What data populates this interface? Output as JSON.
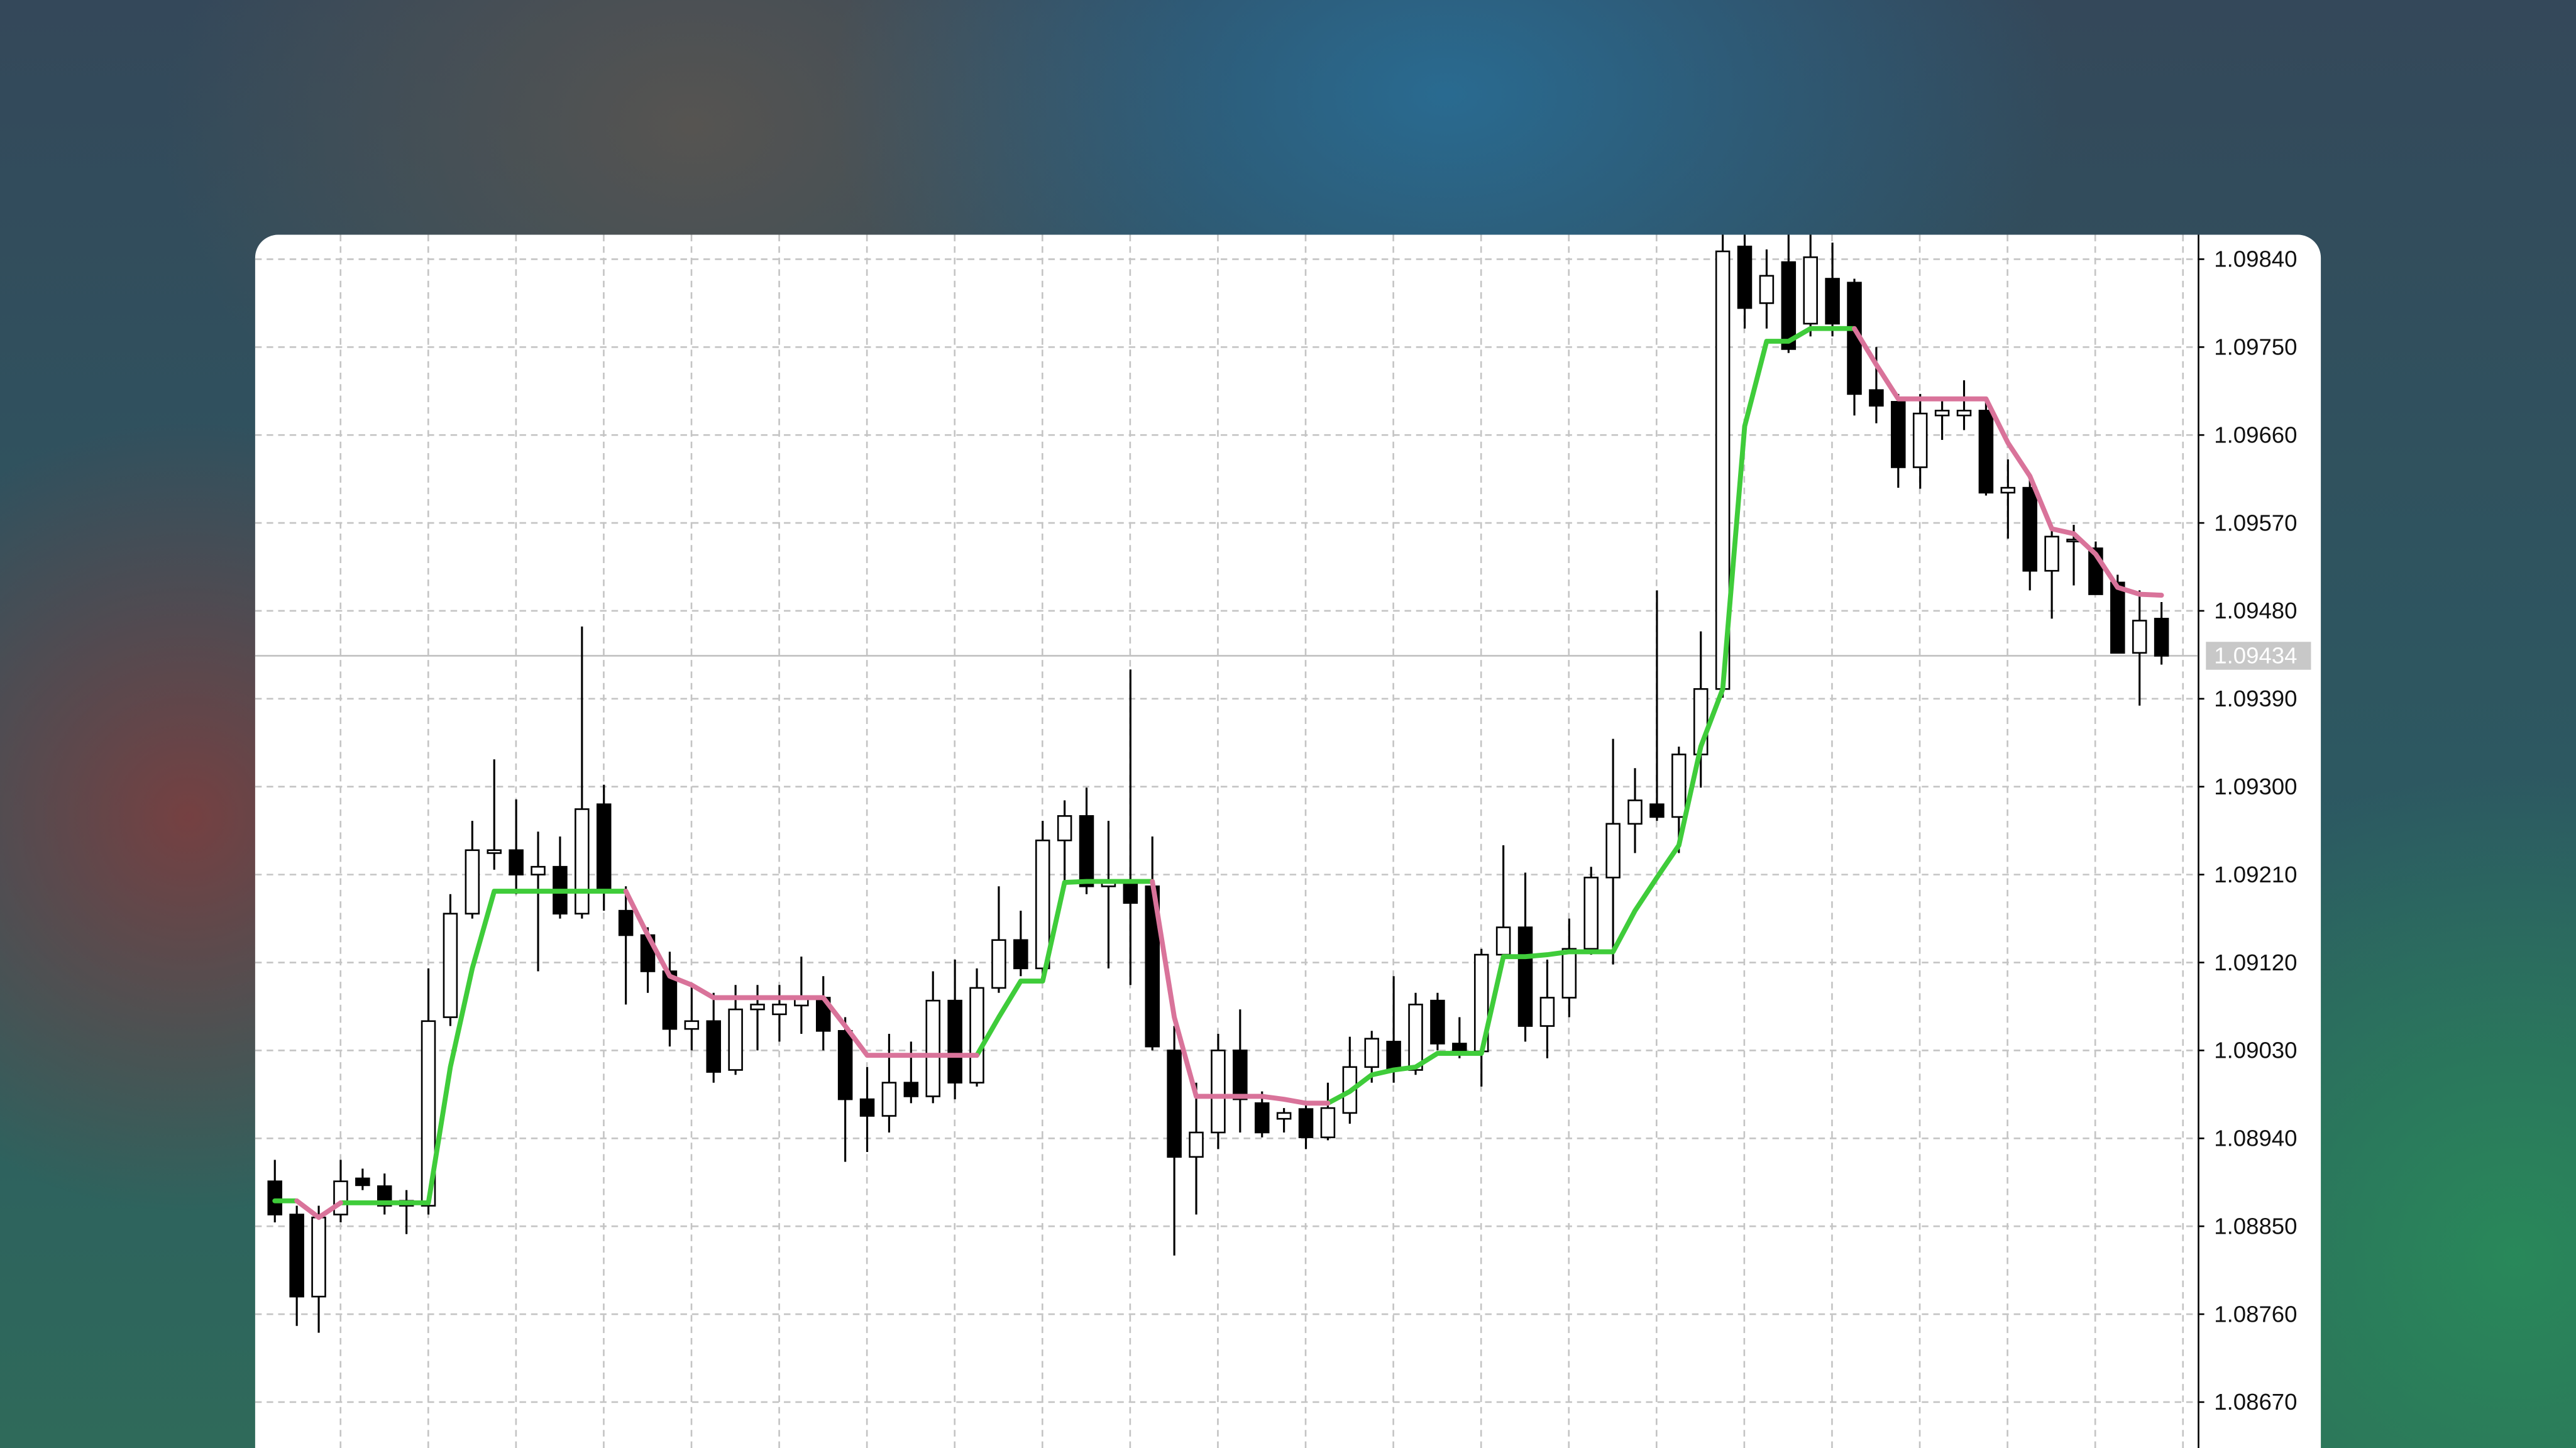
{
  "chart_data": {
    "type": "candlestick",
    "ylim": [
      1.08623,
      1.09865
    ],
    "yticks": [
      {
        "value": 1.0984,
        "label": "1.09840"
      },
      {
        "value": 1.0975,
        "label": "1.09750"
      },
      {
        "value": 1.0966,
        "label": "1.09660"
      },
      {
        "value": 1.0957,
        "label": "1.09570"
      },
      {
        "value": 1.0948,
        "label": "1.09480"
      },
      {
        "value": 1.0939,
        "label": "1.09390"
      },
      {
        "value": 1.093,
        "label": "1.09300"
      },
      {
        "value": 1.0921,
        "label": "1.09210"
      },
      {
        "value": 1.0912,
        "label": "1.09120"
      },
      {
        "value": 1.0903,
        "label": "1.09030"
      },
      {
        "value": 1.0894,
        "label": "1.08940"
      },
      {
        "value": 1.0885,
        "label": "1.08850"
      },
      {
        "value": 1.0876,
        "label": "1.08760"
      },
      {
        "value": 1.0867,
        "label": "1.08670"
      }
    ],
    "grid": true,
    "up_color": "#ffffff",
    "down_color": "#000000",
    "last_price": {
      "value": 1.09434,
      "label": "1.09434"
    },
    "open": [
      1.08896,
      1.08862,
      1.08778,
      1.08862,
      1.08899,
      1.08891,
      1.08871,
      1.08871,
      1.09064,
      1.0917,
      1.09232,
      1.09235,
      1.0921,
      1.09218,
      1.0917,
      1.09282,
      1.09173,
      1.09148,
      1.09111,
      1.09052,
      1.0906,
      1.0901,
      1.09072,
      1.09067,
      1.09076,
      1.09084,
      1.0905,
      1.0898,
      1.08963,
      1.08997,
      1.08983,
      1.09081,
      1.08997,
      1.09094,
      1.09143,
      1.09114,
      1.09245,
      1.0927,
      1.09198,
      1.09203,
      1.09198,
      1.0903,
      1.08921,
      1.08946,
      1.0903,
      1.08976,
      1.0896,
      1.0897,
      1.08941,
      1.08966,
      1.09013,
      1.09039,
      1.0901,
      1.09081,
      1.09037,
      1.09029,
      1.09128,
      1.09156,
      1.09055,
      1.09084,
      1.09134,
      1.09207,
      1.09262,
      1.09282,
      1.09269,
      1.09333,
      1.094,
      1.09853,
      1.09795,
      1.09837,
      1.09774,
      1.0982,
      1.09816,
      1.09706,
      1.09694,
      1.09627,
      1.0968,
      1.0968,
      1.09685,
      1.09601,
      1.09606,
      1.09521,
      1.09551,
      1.09544,
      1.09509,
      1.09437,
      1.09472
    ],
    "high": [
      1.08918,
      1.08871,
      1.08871,
      1.08918,
      1.08909,
      1.08904,
      1.08887,
      1.09114,
      1.0919,
      1.09265,
      1.09328,
      1.09287,
      1.09254,
      1.09249,
      1.09464,
      1.09302,
      1.09198,
      1.09156,
      1.09131,
      1.09097,
      1.09089,
      1.09097,
      1.09097,
      1.09097,
      1.09126,
      1.09106,
      1.09064,
      1.09013,
      1.09047,
      1.09039,
      1.09111,
      1.09123,
      1.09114,
      1.09198,
      1.09173,
      1.09265,
      1.09286,
      1.09299,
      1.09265,
      1.0942,
      1.09249,
      1.09055,
      1.08997,
      1.09047,
      1.09072,
      1.08988,
      1.08971,
      1.08976,
      1.08997,
      1.09044,
      1.0905,
      1.09106,
      1.09089,
      1.09089,
      1.09064,
      1.09134,
      1.0924,
      1.09212,
      1.09123,
      1.09165,
      1.09218,
      1.09349,
      1.09319,
      1.09501,
      1.09341,
      1.09459,
      1.09865,
      1.09865,
      1.0985,
      1.09865,
      1.09865,
      1.09857,
      1.0982,
      1.0975,
      1.09702,
      1.09702,
      1.09696,
      1.09716,
      1.09694,
      1.09635,
      1.09618,
      1.09564,
      1.09568,
      1.09551,
      1.09517,
      1.09501,
      1.09489
    ],
    "low": [
      1.08854,
      1.08748,
      1.08741,
      1.08854,
      1.08887,
      1.08862,
      1.08842,
      1.08862,
      1.09055,
      1.09165,
      1.09215,
      1.0919,
      1.09111,
      1.09165,
      1.09165,
      1.09173,
      1.09077,
      1.09089,
      1.09034,
      1.0903,
      1.08997,
      1.09005,
      1.0903,
      1.09039,
      1.09047,
      1.0903,
      1.08916,
      1.08926,
      1.08946,
      1.08976,
      1.08976,
      1.0898,
      1.08993,
      1.09089,
      1.09106,
      1.09106,
      1.09198,
      1.0919,
      1.09114,
      1.09097,
      1.0903,
      1.0882,
      1.08862,
      1.08929,
      1.08946,
      1.08941,
      1.08946,
      1.08929,
      1.08938,
      1.08955,
      1.08997,
      1.08997,
      1.09005,
      1.0903,
      1.09022,
      1.08993,
      1.09123,
      1.09039,
      1.09022,
      1.09064,
      1.09128,
      1.09118,
      1.09232,
      1.09265,
      1.09232,
      1.09299,
      1.09391,
      1.09769,
      1.09769,
      1.09744,
      1.09761,
      1.09761,
      1.0968,
      1.09672,
      1.09606,
      1.09605,
      1.09655,
      1.09665,
      1.09598,
      1.09554,
      1.09501,
      1.09472,
      1.09506,
      1.09497,
      1.09437,
      1.09383,
      1.09425
    ],
    "close": [
      1.08862,
      1.08778,
      1.08859,
      1.08896,
      1.08892,
      1.08871,
      1.08876,
      1.0906,
      1.0917,
      1.09235,
      1.09235,
      1.0921,
      1.09218,
      1.0917,
      1.09277,
      1.09195,
      1.09148,
      1.09111,
      1.09052,
      1.0906,
      1.09008,
      1.09072,
      1.09077,
      1.09077,
      1.09084,
      1.0905,
      1.0898,
      1.08963,
      1.08997,
      1.08983,
      1.09081,
      1.08997,
      1.09094,
      1.09143,
      1.09114,
      1.09245,
      1.0927,
      1.09198,
      1.09203,
      1.09181,
      1.09034,
      1.08921,
      1.08946,
      1.0903,
      1.0898,
      1.08946,
      1.08966,
      1.08941,
      1.08971,
      1.09013,
      1.09042,
      1.0901,
      1.09077,
      1.09037,
      1.09029,
      1.09128,
      1.09156,
      1.09055,
      1.09084,
      1.09134,
      1.09207,
      1.09262,
      1.09286,
      1.09269,
      1.09333,
      1.094,
      1.09848,
      1.0979,
      1.09823,
      1.09748,
      1.09842,
      1.09774,
      1.09702,
      1.0969,
      1.09627,
      1.09682,
      1.09685,
      1.09685,
      1.09601,
      1.09606,
      1.09521,
      1.09556,
      1.09553,
      1.09497,
      1.09437,
      1.0947,
      1.09434
    ],
    "series": [
      {
        "color": "#3fcc3a",
        "values": [
          1.08876,
          1.08876,
          null,
          1.08874,
          1.08874,
          1.08874,
          1.08874,
          1.08874,
          1.09013,
          1.09114,
          1.09193,
          1.09193,
          1.09193,
          1.09193,
          1.09193,
          1.09193,
          1.09193,
          null,
          null,
          null,
          null,
          null,
          null,
          null,
          null,
          null,
          null,
          null,
          null,
          null,
          null,
          null,
          1.09025,
          1.09064,
          1.09101,
          1.09101,
          1.09202,
          1.09203,
          1.09203,
          1.09203,
          1.09203,
          null,
          null,
          null,
          null,
          null,
          null,
          null,
          1.08976,
          1.08988,
          1.09005,
          1.0901,
          1.09013,
          1.09027,
          1.09027,
          1.09027,
          1.09126,
          1.09126,
          1.09128,
          1.09131,
          1.09131,
          1.09131,
          1.09173,
          1.09207,
          1.0924,
          1.09341,
          1.094,
          1.09669,
          1.09756,
          1.09756,
          1.09769,
          1.09769,
          1.09769,
          null,
          null,
          null,
          null,
          null,
          null,
          null,
          null,
          null,
          null,
          null,
          null,
          null,
          null
        ]
      },
      {
        "color": "#d9739a",
        "values": [
          null,
          1.08876,
          1.08859,
          1.08874,
          null,
          null,
          null,
          null,
          null,
          null,
          null,
          null,
          null,
          null,
          null,
          null,
          1.09193,
          1.09148,
          1.09106,
          1.09097,
          1.09084,
          1.09084,
          1.09084,
          1.09084,
          1.09084,
          1.09084,
          1.09055,
          1.09025,
          1.09025,
          1.09025,
          1.09025,
          1.09025,
          1.09025,
          null,
          null,
          null,
          null,
          null,
          null,
          null,
          1.09203,
          1.09064,
          1.08983,
          1.08983,
          1.08983,
          1.08983,
          1.0898,
          1.08976,
          1.08976,
          null,
          null,
          null,
          null,
          null,
          null,
          null,
          null,
          null,
          null,
          null,
          null,
          null,
          null,
          null,
          null,
          null,
          null,
          null,
          null,
          null,
          null,
          null,
          1.09769,
          1.09732,
          1.09697,
          1.09697,
          1.09697,
          1.09697,
          1.09697,
          1.09652,
          1.09618,
          1.09564,
          1.09559,
          1.09538,
          1.09504,
          1.09497,
          1.09496
        ]
      }
    ]
  }
}
